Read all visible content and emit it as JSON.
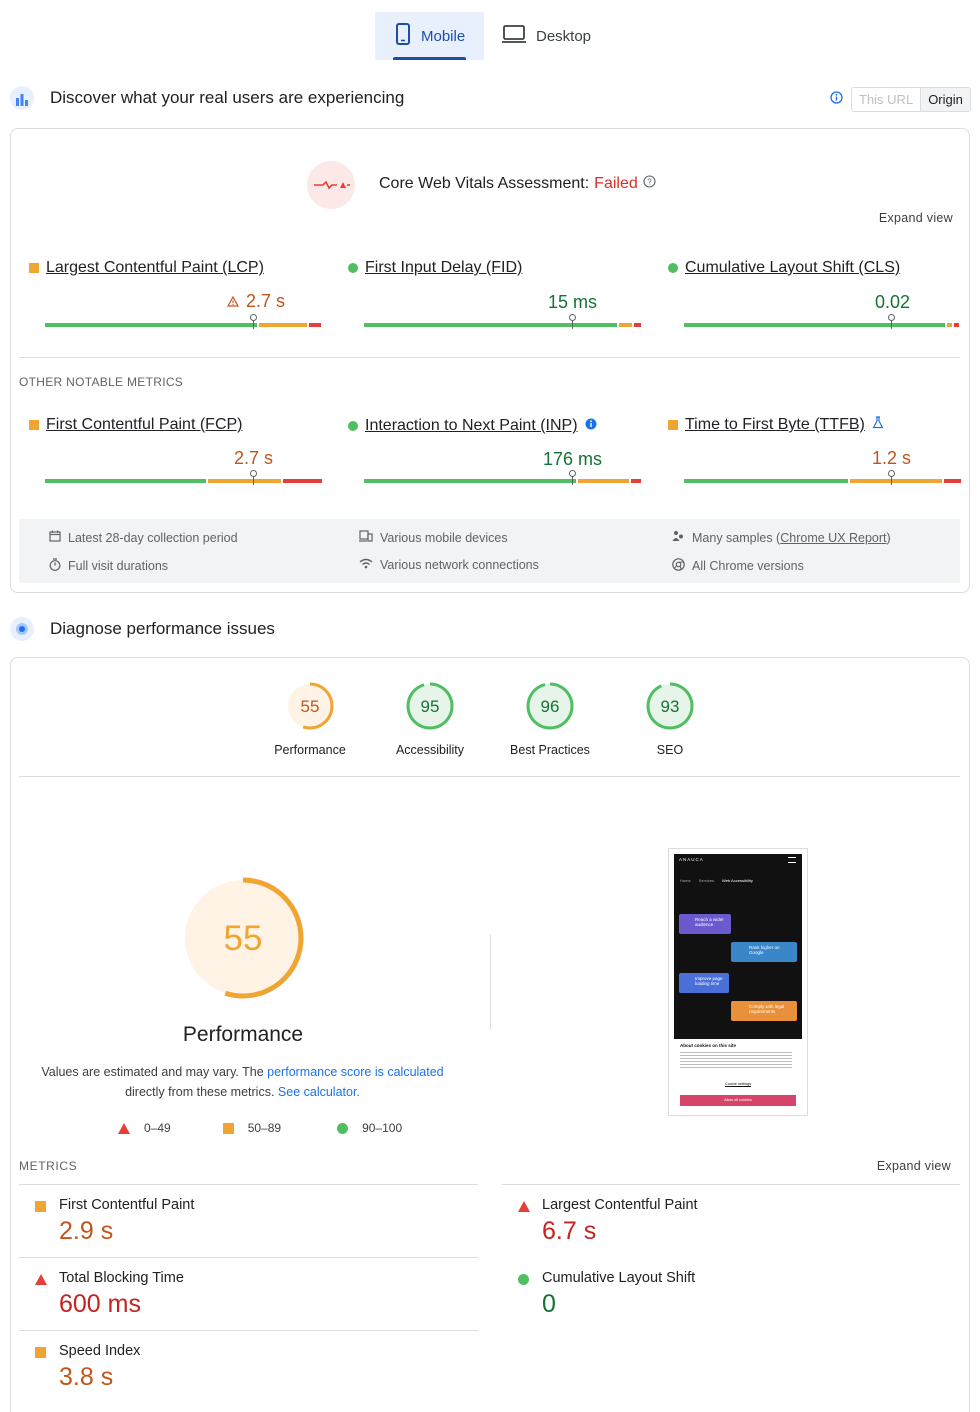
{
  "tabs": {
    "mobile": "Mobile",
    "desktop": "Desktop"
  },
  "field": {
    "title": "Discover what your real users are experiencing",
    "this_url": "This URL",
    "origin": "Origin",
    "assessment_label": "Core Web Vitals Assessment:",
    "assessment_status": "Failed",
    "expand": "Expand view",
    "core_metrics": [
      {
        "name": "Largest Contentful Paint (LCP)",
        "value": "2.7 s",
        "status": "needs-improvement"
      },
      {
        "name": "First Input Delay (FID)",
        "value": "15 ms",
        "status": "good"
      },
      {
        "name": "Cumulative Layout Shift (CLS)",
        "value": "0.02",
        "status": "good"
      }
    ],
    "other_label": "OTHER NOTABLE METRICS",
    "other_metrics": [
      {
        "name": "First Contentful Paint (FCP)",
        "value": "2.7 s",
        "status": "needs-improvement"
      },
      {
        "name": "Interaction to Next Paint (INP)",
        "value": "176 ms",
        "status": "good"
      },
      {
        "name": "Time to First Byte (TTFB)",
        "value": "1.2 s",
        "status": "needs-improvement"
      }
    ],
    "info": {
      "period": "Latest 28-day collection period",
      "devices": "Various mobile devices",
      "samples_prefix": "Many samples (",
      "samples_link": "Chrome UX Report",
      "samples_suffix": ")",
      "durations": "Full visit durations",
      "network": "Various network connections",
      "chrome": "All Chrome versions"
    }
  },
  "lab": {
    "title": "Diagnose performance issues",
    "scores": [
      {
        "label": "Performance",
        "value": "55",
        "score": 55
      },
      {
        "label": "Accessibility",
        "value": "95",
        "score": 95
      },
      {
        "label": "Best Practices",
        "value": "96",
        "score": 96
      },
      {
        "label": "SEO",
        "value": "93",
        "score": 93
      }
    ],
    "big_score": "55",
    "big_label": "Performance",
    "note_1": "Values are estimated and may vary. The ",
    "note_link": "performance score is calculated",
    "note_2": "directly from these metrics. ",
    "note_calc": "See calculator.",
    "legend": [
      "0–49",
      "50–89",
      "90–100"
    ],
    "metrics_label": "METRICS",
    "expand": "Expand view",
    "metrics": [
      {
        "name": "First Contentful Paint",
        "value": "2.9 s",
        "status": "average"
      },
      {
        "name": "Largest Contentful Paint",
        "value": "6.7 s",
        "status": "fail"
      },
      {
        "name": "Total Blocking Time",
        "value": "600 ms",
        "status": "fail"
      },
      {
        "name": "Cumulative Layout Shift",
        "value": "0",
        "status": "pass"
      },
      {
        "name": "Speed Index",
        "value": "3.8 s",
        "status": "average"
      }
    ],
    "screenshot": {
      "logo": "ANAUCA",
      "crumbs": [
        "Home",
        "Services",
        "Web Accessibility"
      ],
      "cards": [
        "Reach a wider audience",
        "Rank higher on Google",
        "Improve page loading time",
        "Comply with legal requirements"
      ],
      "cookie_title": "About cookies on this site",
      "cookie_settings": "Cookie settings",
      "cookie_accept": "Allow all cookies"
    }
  },
  "colors": {
    "good": "#4fbf62",
    "average": "#f0a431",
    "poor": "#e63f3a",
    "accent": "#1a4ea8"
  }
}
